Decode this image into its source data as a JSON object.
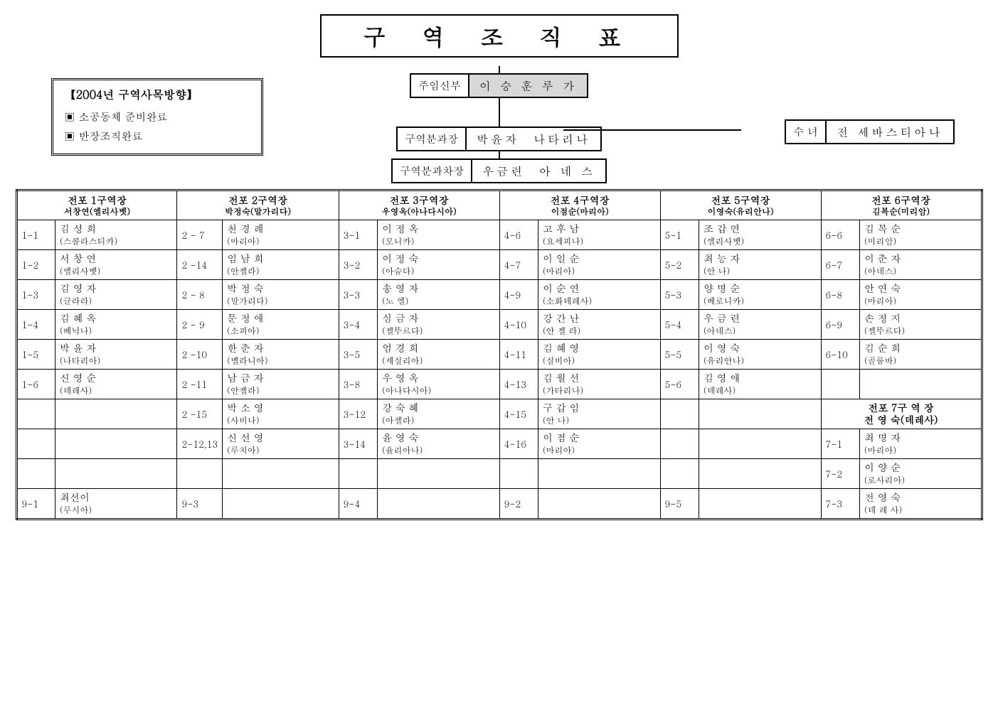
{
  "title": "구 역   조 직 표",
  "hierarchy": {
    "priest": {
      "label": "주임신부",
      "name": "이 승 훈 루 가"
    },
    "nun": {
      "label": "수 녀",
      "name": "전 세바스티아나"
    },
    "head": {
      "label": "구역분과장",
      "name": "박윤자　나타리나"
    },
    "vice": {
      "label": "구역분과차장",
      "name": "우금련　아 네 스"
    }
  },
  "note": {
    "title": "【2004년 구역사목방향】",
    "items": [
      "▣ 소공동체 준비완료",
      "▣ 반장조직완료"
    ]
  },
  "headers": [
    {
      "t": "전포 1구역장",
      "s": "서창연(엘리사벳)"
    },
    {
      "t": "전포 2구역장",
      "s": "박정숙(말가리다)"
    },
    {
      "t": "전포 3구역장",
      "s": "우영옥(아나다시아)"
    },
    {
      "t": "전포 4구역장",
      "s": "이점순(마리아)"
    },
    {
      "t": "전포 5구역장",
      "s": "이영숙(유리안나)"
    },
    {
      "t": "전포 6구역장",
      "s": "김복순(미리암)"
    }
  ],
  "section7": {
    "t": "전포 7구 역 장",
    "s": "전 영 숙(데레사)"
  },
  "rows": [
    [
      [
        "1-1",
        "김 성 희",
        "(스콜라스티카)"
      ],
      [
        "2 - 7",
        "천 경 례",
        "(마리아)"
      ],
      [
        "3-1",
        "이 정 옥",
        "(모니카)"
      ],
      [
        "4-6",
        "고 후 남",
        "(요세피나)"
      ],
      [
        "5-1",
        "조 갑 연",
        "(엘리사벳)"
      ],
      [
        "6-6",
        "김 복 순",
        "(미리암)"
      ]
    ],
    [
      [
        "1-2",
        "서 창 연",
        "(엘리사벳)"
      ],
      [
        "2 -14",
        "임 남 희",
        "(안젤라)"
      ],
      [
        "3-2",
        "이 정 숙",
        "(아숨다)"
      ],
      [
        "4-7",
        "이 일 순",
        "(마리아)"
      ],
      [
        "5-2",
        "최 능 자",
        "(안 나)"
      ],
      [
        "6-7",
        "이 춘 자",
        "(아네스)"
      ]
    ],
    [
      [
        "1-3",
        "김 영 자",
        "(글라라)"
      ],
      [
        "2 - 8",
        "박 정 숙",
        "(말가리다)"
      ],
      [
        "3-3",
        "송 영 자",
        "(노 엘)"
      ],
      [
        "4-9",
        "이 순 연",
        "(소화데레사)"
      ],
      [
        "5-3",
        "양 명 순",
        "(베로니카)"
      ],
      [
        "6-8",
        "안 연 숙",
        "(마리아)"
      ]
    ],
    [
      [
        "1-4",
        "김 혜 옥",
        "(베닉나)"
      ],
      [
        "2 - 9",
        "문 정 애",
        "(소피아)"
      ],
      [
        "3-4",
        "심 금 자",
        "(젤뚜르다)"
      ],
      [
        "4-10",
        "강 간 난",
        "(안 젤 라)"
      ],
      [
        "5-4",
        "우 금 련",
        "(아네스)"
      ],
      [
        "6-9",
        "손 정 지",
        "(젤뚜르다)"
      ]
    ],
    [
      [
        "1-5",
        "박 윤 자",
        "(나타리아)"
      ],
      [
        "2 -10",
        "한 춘 자",
        "(멜라니아)"
      ],
      [
        "3-5",
        "엄 경 희",
        "(세실리아)"
      ],
      [
        "4-11",
        "김 혜 영",
        "(실비아)"
      ],
      [
        "5-5",
        "이 영 숙",
        "(유리안나)"
      ],
      [
        "6-10",
        "김 순 희",
        "(골룸바)"
      ]
    ],
    [
      [
        "1-6",
        "신 영 순",
        "(데레사)"
      ],
      [
        "2 -11",
        "남 금 자",
        "(안젤라)"
      ],
      [
        "3-8",
        "우 영 옥",
        "(아나다시아)"
      ],
      [
        "4-13",
        "김 월 선",
        "(가타리나)"
      ],
      [
        "5-6",
        "김 영 애",
        "(데레사)"
      ],
      [
        "",
        "",
        ""
      ]
    ]
  ],
  "rows2": [
    [
      [
        "",
        "",
        ""
      ],
      [
        "2 -15",
        "박 소 영",
        "(사비나)"
      ],
      [
        "3-12",
        "강 숙 혜",
        "(아셀라)"
      ],
      [
        "4-15",
        "구 갑 임",
        "(안 나)"
      ],
      [
        "",
        "",
        ""
      ]
    ],
    [
      [
        "",
        "",
        ""
      ],
      [
        "2-12,13",
        "신 선 영",
        "(루치아)"
      ],
      [
        "3-14",
        "윤 영 숙",
        "(율리아나)"
      ],
      [
        "4-16",
        "이 점 순",
        "(마리아)"
      ],
      [
        "",
        "",
        ""
      ],
      [
        "7-1",
        "최 명 자",
        "(마리아)"
      ]
    ],
    [
      [
        "",
        "",
        ""
      ],
      [
        "",
        "",
        ""
      ],
      [
        "",
        "",
        ""
      ],
      [
        "",
        "",
        ""
      ],
      [
        "",
        "",
        ""
      ],
      [
        "7-2",
        "이 양 순",
        "(로사리아)"
      ]
    ]
  ],
  "lastrow": [
    [
      "9-1",
      "최선이",
      "(루시아)"
    ],
    [
      "9-3",
      "",
      ""
    ],
    [
      "9-4",
      "",
      ""
    ],
    [
      "9-2",
      "",
      ""
    ],
    [
      "9-5",
      "",
      ""
    ],
    [
      "7-3",
      "전 영 숙",
      "(데 레 사)"
    ]
  ]
}
